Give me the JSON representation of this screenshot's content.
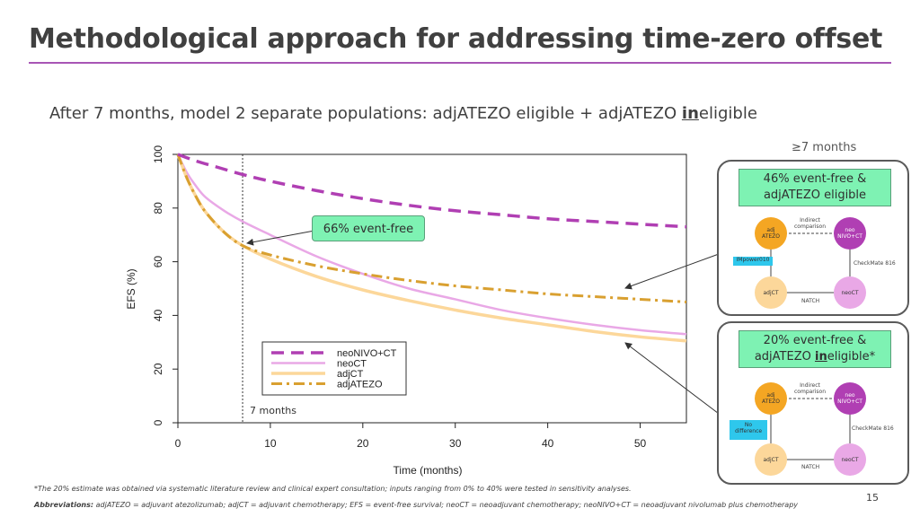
{
  "slide": {
    "title": "Methodological approach for addressing time-zero offset",
    "subtitle_pre": "After 7 months, model 2 separate populations: adjATEZO eligible + adjATEZO ",
    "subtitle_und": "in",
    "subtitle_post": "eligible",
    "months_label": "≥7 months",
    "page_number": "15",
    "footnote": "*The 20% estimate was obtained via systematic literature review and clinical expert consultation; inputs ranging from 0% to 40% were tested in sensitivity analyses.",
    "abbr_label": "Abbreviations:",
    "abbr_text": " adjATEZO = adjuvant atezolizumab; adjCT = adjuvant chemotherapy; EFS = event-free survival; neoCT = neoadjuvant chemotherapy; neoNIVO+CT = neoadjuvant nivolumab plus chemotherapy"
  },
  "callout": {
    "event_free_66": "66% event-free",
    "seven_months": "7 months"
  },
  "panel_top": {
    "box_line1": "46% event-free &",
    "box_line2": "adjATEZO eligible",
    "node_adj": "adj\nATEZO",
    "node_neo": "neo\nNIVO+CT",
    "node_adjct": "adjCT",
    "node_neoct": "neoCT",
    "indirect": "Indirect\ncomparison",
    "trial_left": "IMpower010",
    "trial_right": "CheckMate 816",
    "trial_bottom": "NATCH"
  },
  "panel_bottom": {
    "box_line1": "20% event-free &",
    "box_line2_pre": "adjATEZO ",
    "box_line2_und": "in",
    "box_line2_post": "eligible*",
    "node_adj": "adj\nATEZO",
    "node_neo": "neo\nNIVO+CT",
    "node_adjct": "adjCT",
    "node_neoct": "neoCT",
    "indirect": "Indirect\ncomparison",
    "trial_left": "No\ndifference",
    "trial_right": "CheckMate 816",
    "trial_bottom": "NATCH"
  },
  "colors": {
    "neoNIVO": "#b03fb3",
    "neoCT": "#e9a8e6",
    "adjCT": "#fcd79a",
    "adjATEZO": "#d9a030",
    "accent": "#a855b5",
    "green": "#7ef2b3"
  },
  "chart_data": {
    "type": "line",
    "title": "",
    "xlabel": "Time (months)",
    "ylabel": "EFS (%)",
    "xlim": [
      0,
      55
    ],
    "ylim": [
      0,
      100
    ],
    "xticks": [
      0,
      10,
      20,
      30,
      40,
      50
    ],
    "yticks": [
      0,
      20,
      40,
      60,
      80,
      100
    ],
    "vline_x": 7,
    "legend_position": "bottom-left",
    "series": [
      {
        "name": "neoNIVO+CT",
        "style": "dashed",
        "x": [
          0,
          2,
          4,
          7,
          10,
          15,
          20,
          25,
          30,
          35,
          40,
          45,
          50,
          55
        ],
        "y": [
          100,
          97.5,
          95.5,
          92.5,
          90,
          86.5,
          83.5,
          81,
          79,
          77.5,
          76,
          75,
          74,
          73
        ]
      },
      {
        "name": "neoCT",
        "style": "solid",
        "x": [
          0,
          1,
          2,
          3,
          5,
          7,
          10,
          15,
          20,
          25,
          30,
          35,
          40,
          45,
          50,
          55
        ],
        "y": [
          100,
          93,
          88,
          84,
          79,
          75,
          70,
          62,
          55.5,
          50,
          46,
          42,
          39,
          36.5,
          34.5,
          33
        ]
      },
      {
        "name": "adjCT",
        "style": "solid",
        "x": [
          0,
          1,
          2,
          3,
          5,
          7,
          10,
          15,
          20,
          25,
          30,
          35,
          40,
          45,
          50,
          55
        ],
        "y": [
          100,
          91,
          84,
          78.5,
          71,
          66,
          61,
          54.5,
          49.5,
          45.5,
          42,
          39,
          36.5,
          34,
          32,
          30.5
        ]
      },
      {
        "name": "adjATEZO",
        "style": "dashdot",
        "x": [
          0,
          1,
          2,
          3,
          5,
          7,
          10,
          15,
          20,
          25,
          30,
          35,
          40,
          45,
          50,
          55
        ],
        "y": [
          100,
          91,
          84,
          78.5,
          71,
          66,
          62.5,
          58.5,
          55.5,
          53,
          51,
          49.5,
          48,
          47,
          46,
          45
        ]
      }
    ],
    "annotations": [
      "66% event-free",
      "7 months"
    ]
  }
}
